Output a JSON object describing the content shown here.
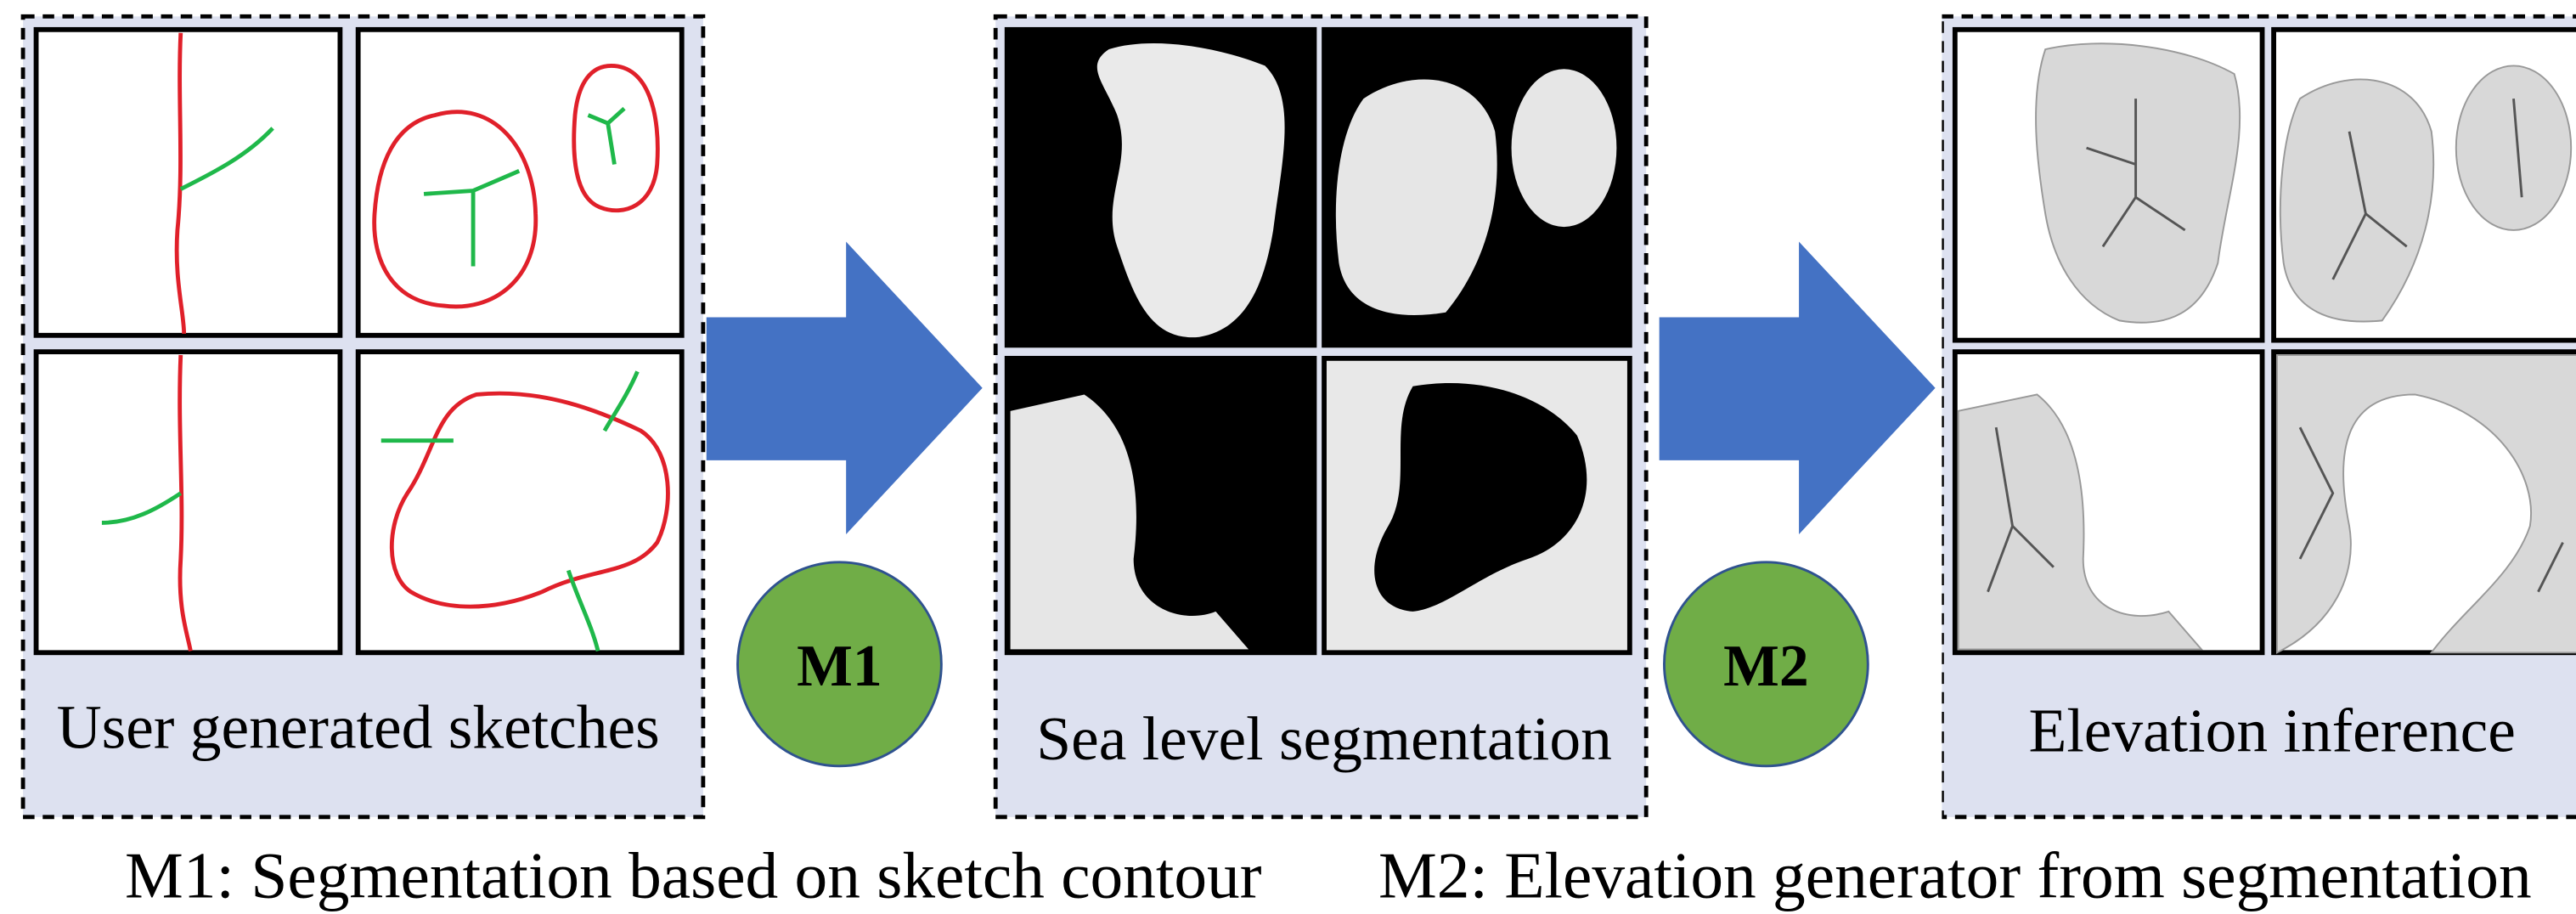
{
  "panels": [
    {
      "label": "User generated sketches"
    },
    {
      "label": "Sea level segmentation"
    },
    {
      "label": "Elevation inference"
    }
  ],
  "models": [
    {
      "label": "M1"
    },
    {
      "label": "M2"
    }
  ],
  "captions": [
    "M1: Segmentation based on sketch contour",
    "M2: Elevation generator from segmentation"
  ]
}
